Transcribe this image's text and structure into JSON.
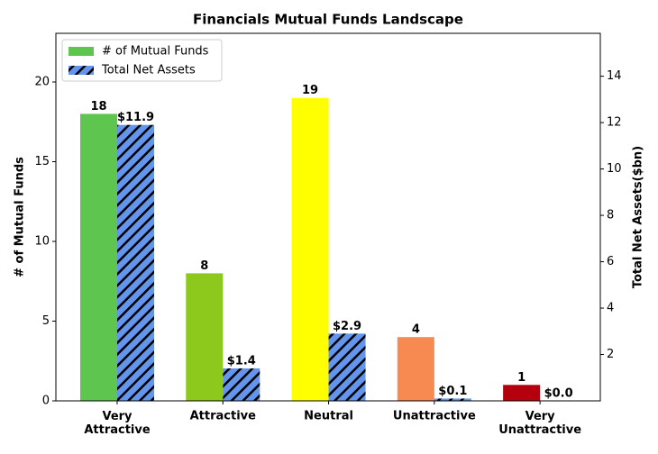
{
  "chart_data": {
    "type": "bar",
    "title": "Financials Mutual Funds Landscape",
    "y_label": "# of Mutual Funds",
    "y2_label": "Total Net Assets($bn)",
    "categories": [
      "Very Attractive",
      "Attractive",
      "Neutral",
      "Unattractive",
      "Very Unattractive"
    ],
    "series": [
      {
        "name": "# of Mutual Funds",
        "colors": [
          "#5ec64f",
          "#8dc81c",
          "#ffff00",
          "#f78a50",
          "#b5000e"
        ],
        "values": [
          18,
          8,
          19,
          4,
          1
        ]
      },
      {
        "name": "Total Net Assets",
        "axis": "y2",
        "color": "#6495ed",
        "hatch": "///",
        "values": [
          11.9,
          1.4,
          2.9,
          0.1,
          0.0
        ],
        "value_labels": [
          "$11.9",
          "$1.4",
          "$2.9",
          "$0.1",
          "$0.0"
        ]
      }
    ],
    "ylim": [
      0,
      23.05
    ],
    "yticks": [
      0,
      5,
      10,
      15,
      20
    ],
    "y2lim": [
      0,
      15.85
    ],
    "y2ticks": [
      2,
      4,
      6,
      8,
      10,
      12,
      14
    ],
    "legend": "upper left"
  }
}
